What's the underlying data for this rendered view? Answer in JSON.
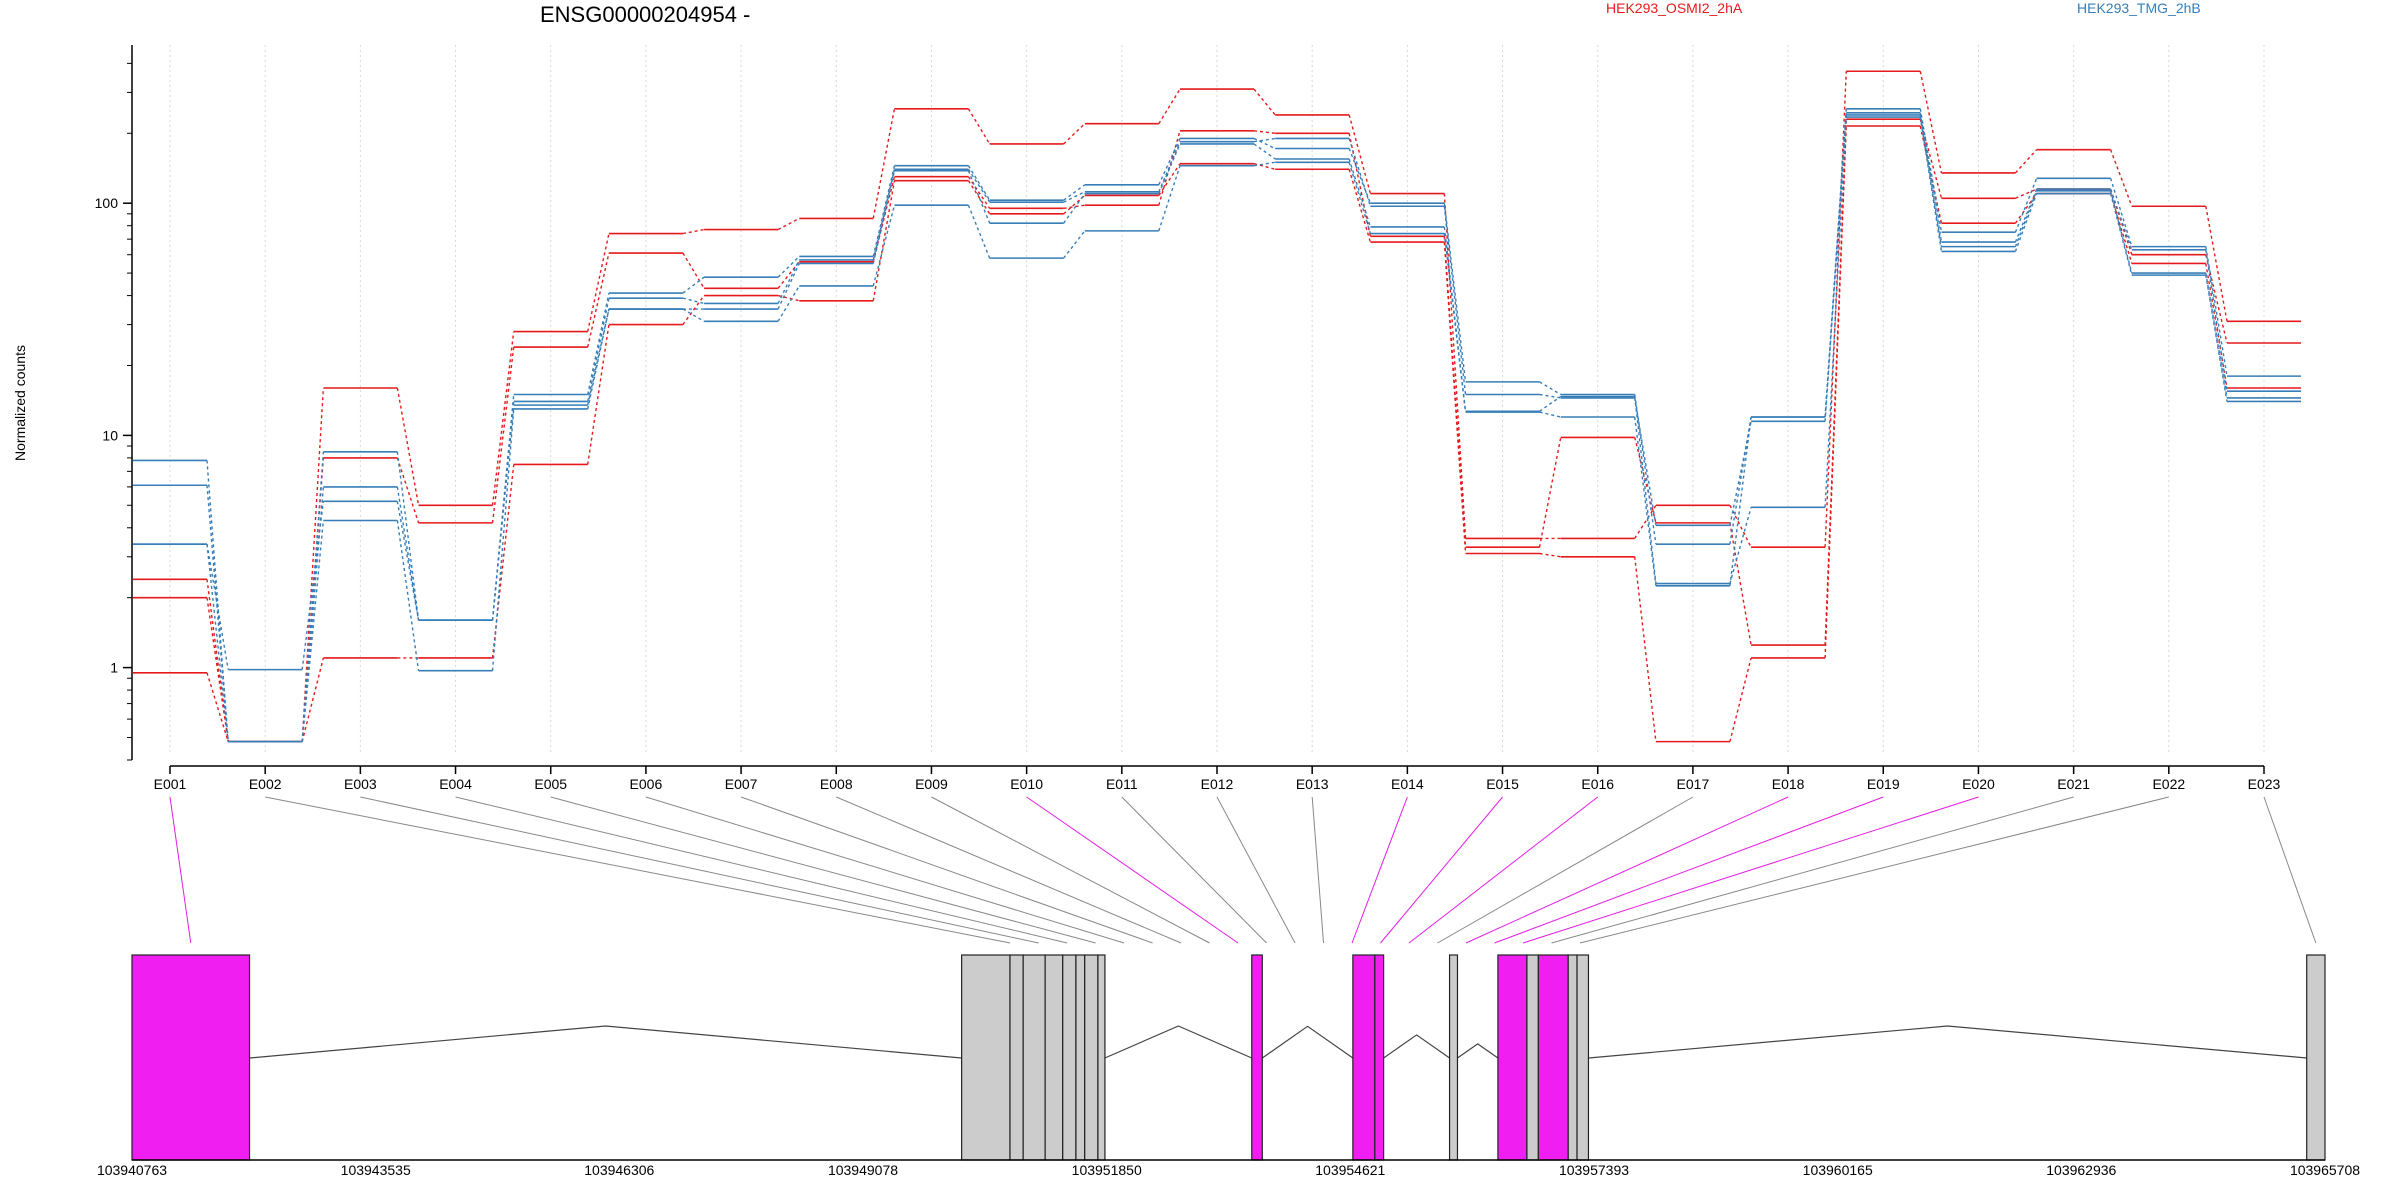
{
  "chart_data": {
    "type": "line",
    "title": "ENSG00000204954 -",
    "ylabel": "Normalized counts",
    "yscale": "log",
    "ylim": [
      0.4,
      480
    ],
    "yticks": [
      1,
      10,
      100
    ],
    "ytick_labels": [
      "1",
      "10",
      "100"
    ],
    "grid": "vertical dotted at exon centers",
    "legend_placement": "top-right",
    "categories": [
      "E001",
      "E002",
      "E003",
      "E004",
      "E005",
      "E006",
      "E007",
      "E008",
      "E009",
      "E010",
      "E011",
      "E012",
      "E013",
      "E014",
      "E015",
      "E016",
      "E017",
      "E018",
      "E019",
      "E020",
      "E021",
      "E022",
      "E023"
    ],
    "series": [
      {
        "name": "HEK293_OSMI2_2hA",
        "group": "osmi",
        "color": "#e41a1c",
        "values": [
          2.4,
          0.48,
          16,
          5.0,
          28,
          74,
          77,
          86,
          255,
          180,
          220,
          310,
          240,
          110,
          3.6,
          3.6,
          5.0,
          3.3,
          370,
          135,
          170,
          97,
          31
        ]
      },
      {
        "name": "",
        "group": "osmi",
        "color": "#e41a1c",
        "values": [
          2.0,
          0.48,
          8,
          4.2,
          24,
          61,
          43,
          56,
          130,
          95,
          98,
          205,
          200,
          72,
          3.3,
          9.8,
          4.2,
          1.25,
          230,
          105,
          115,
          60,
          25
        ]
      },
      {
        "name": "",
        "group": "osmi",
        "color": "#e41a1c",
        "values": [
          0.95,
          0.48,
          1.1,
          1.1,
          7.5,
          30,
          40,
          38,
          125,
          90,
          108,
          148,
          140,
          68,
          3.1,
          3.0,
          0.48,
          1.1,
          215,
          82,
          110,
          55,
          16
        ]
      },
      {
        "name": "HEK293_TMG_2hB",
        "group": "tmg",
        "color": "#377eb8",
        "values": [
          7.8,
          0.48,
          8.5,
          1.6,
          15,
          41,
          48,
          59,
          145,
          103,
          120,
          190,
          172,
          100,
          17,
          15,
          3.4,
          12,
          255,
          75,
          128,
          65,
          18
        ]
      },
      {
        "name": "",
        "group": "tmg",
        "color": "#377eb8",
        "values": [
          6.1,
          0.48,
          6.0,
          1.6,
          14,
          39,
          37,
          57,
          140,
          101,
          112,
          184,
          190,
          97,
          15,
          14.5,
          4.1,
          11.5,
          245,
          68,
          115,
          63,
          15.5
        ]
      },
      {
        "name": "",
        "group": "tmg",
        "color": "#377eb8",
        "values": [
          3.4,
          0.98,
          5.2,
          1.6,
          13.5,
          35,
          35,
          55,
          138,
          82,
          110,
          180,
          155,
          79,
          12.7,
          14.7,
          2.3,
          4.9,
          240,
          65,
          113,
          50,
          14.5
        ]
      },
      {
        "name": "",
        "group": "tmg",
        "color": "#377eb8",
        "values": [
          3.4,
          0.48,
          4.3,
          0.97,
          13,
          35,
          31,
          44,
          98,
          58,
          76,
          145,
          150,
          74,
          12.6,
          12,
          2.25,
          12,
          235,
          62,
          110,
          49,
          14
        ]
      }
    ],
    "exon_link_colors": [
      "#e31ee3",
      "#888888",
      "#888888",
      "#888888",
      "#888888",
      "#888888",
      "#888888",
      "#888888",
      "#888888",
      "#e31ee3",
      "#888888",
      "#888888",
      "#888888",
      "#e31ee3",
      "#e31ee3",
      "#e31ee3",
      "#888888",
      "#e31ee3",
      "#e31ee3",
      "#e31ee3",
      "#888888",
      "#888888",
      "#888888"
    ],
    "gene_model": {
      "genomic_range": [
        103940763,
        103965708
      ],
      "coordinate_ticks": [
        103940763,
        103943535,
        103946306,
        103949078,
        103951850,
        103954621,
        103957393,
        103960165,
        103962936,
        103965708
      ],
      "exons": [
        {
          "start": 103940763,
          "end": 103942100,
          "color": "#f01ef0"
        },
        {
          "start": 103950200,
          "end": 103950750,
          "color": "#cccccc"
        },
        {
          "start": 103950750,
          "end": 103950900,
          "color": "#cccccc"
        },
        {
          "start": 103950900,
          "end": 103951150,
          "color": "#cccccc"
        },
        {
          "start": 103951150,
          "end": 103951350,
          "color": "#cccccc"
        },
        {
          "start": 103951350,
          "end": 103951500,
          "color": "#cccccc"
        },
        {
          "start": 103951500,
          "end": 103951600,
          "color": "#cccccc"
        },
        {
          "start": 103951600,
          "end": 103951750,
          "color": "#cccccc"
        },
        {
          "start": 103951750,
          "end": 103951830,
          "color": "#cccccc"
        },
        {
          "start": 103953500,
          "end": 103953620,
          "color": "#f01ef0"
        },
        {
          "start": 103954650,
          "end": 103954900,
          "color": "#f01ef0"
        },
        {
          "start": 103954900,
          "end": 103955000,
          "color": "#f01ef0"
        },
        {
          "start": 103955750,
          "end": 103955840,
          "color": "#cccccc"
        },
        {
          "start": 103956300,
          "end": 103956630,
          "color": "#f01ef0"
        },
        {
          "start": 103956630,
          "end": 103956760,
          "color": "#cccccc"
        },
        {
          "start": 103956760,
          "end": 103957100,
          "color": "#f01ef0"
        },
        {
          "start": 103957100,
          "end": 103957200,
          "color": "#cccccc"
        },
        {
          "start": 103957200,
          "end": 103957330,
          "color": "#cccccc"
        },
        {
          "start": 103965500,
          "end": 103965708,
          "color": "#cccccc"
        }
      ]
    }
  }
}
